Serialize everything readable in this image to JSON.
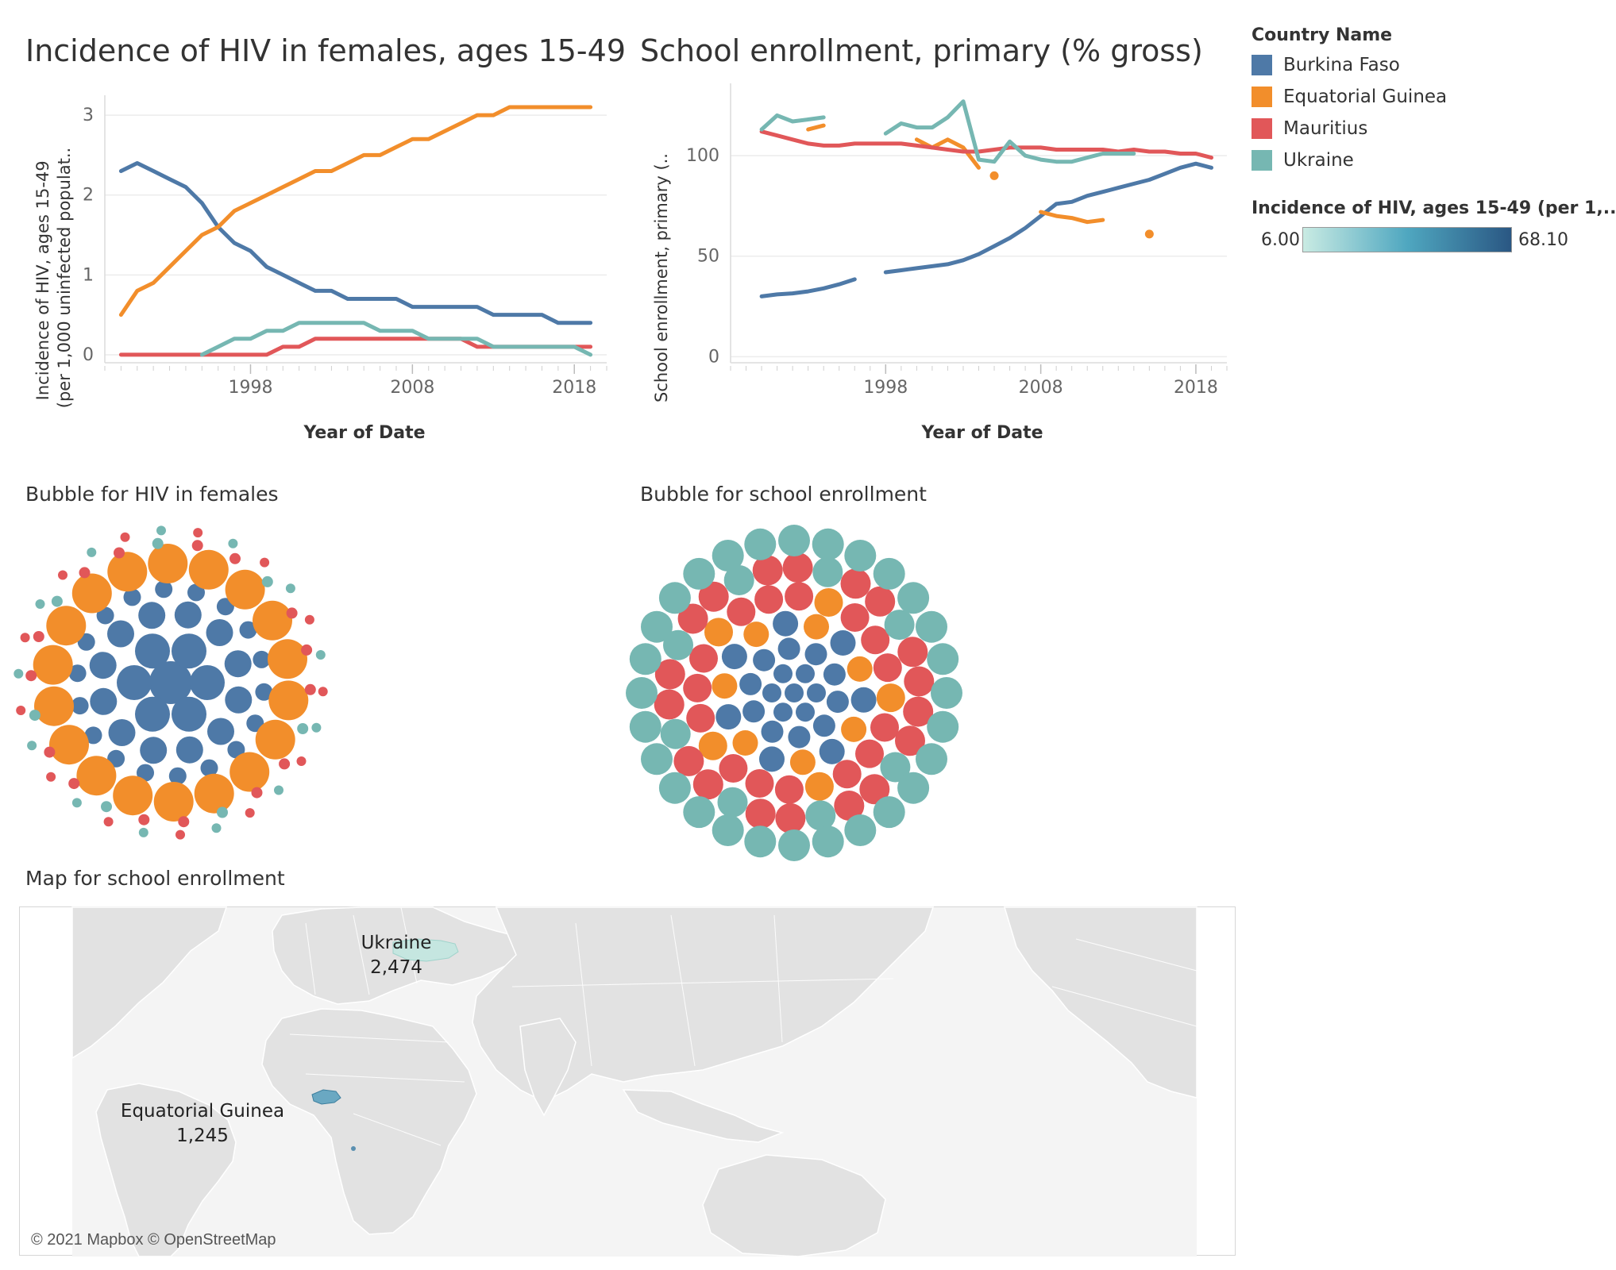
{
  "charts": {
    "hiv": {
      "title": "Incidence of HIV in females, ages 15-49",
      "ylabel_line1": "Incidence of HIV, ages 15-49",
      "ylabel_line2": "(per 1,000 uninfected populat..",
      "xlabel": "Year of Date"
    },
    "school": {
      "title": "School enrollment, primary (% gross)",
      "ylabel": "School enrollment, primary (..",
      "xlabel": "Year of Date"
    }
  },
  "legend": {
    "title": "Country Name",
    "items": [
      {
        "label": "Burkina Faso",
        "color": "#4e79a7"
      },
      {
        "label": "Equatorial Guinea",
        "color": "#f28e2b"
      },
      {
        "label": "Mauritius",
        "color": "#e15759"
      },
      {
        "label": "Ukraine",
        "color": "#76b7b2"
      }
    ],
    "ramp": {
      "title": "Incidence of HIV, ages 15-49 (per 1,..",
      "min_label": "6.00",
      "max_label": "68.10",
      "min_color": "#c9ebe3",
      "max_color": "#2a5783"
    }
  },
  "bubble": {
    "hiv_title": "Bubble for HIV in females",
    "school_title": "Bubble for school enrollment"
  },
  "map": {
    "title": "Map for school enrollment",
    "labels": [
      {
        "name": "Ukraine",
        "value": "2,474"
      },
      {
        "name": "Equatorial Guinea",
        "value": "1,245"
      }
    ],
    "copyright": "© 2021 Mapbox © OpenStreetMap"
  },
  "chart_data": [
    {
      "type": "line",
      "title": "Incidence of HIV in females, ages 15-49",
      "xlabel": "Year of Date",
      "ylabel": "Incidence of HIV, ages 15-49 (per 1,000 uninfected populat..",
      "x_ticks": [
        1998,
        2008,
        2018
      ],
      "y_ticks": [
        0,
        1,
        2,
        3
      ],
      "xlim": [
        1989,
        2020
      ],
      "ylim": [
        -0.1,
        3.15
      ],
      "grid": true,
      "series": [
        {
          "name": "Burkina Faso",
          "color": "#4e79a7",
          "x": [
            1990,
            1991,
            1992,
            1993,
            1994,
            1995,
            1996,
            1997,
            1998,
            1999,
            2000,
            2001,
            2002,
            2003,
            2004,
            2005,
            2006,
            2007,
            2008,
            2009,
            2010,
            2011,
            2012,
            2013,
            2014,
            2015,
            2016,
            2017,
            2018,
            2019
          ],
          "y": [
            2.3,
            2.4,
            2.3,
            2.2,
            2.1,
            1.9,
            1.6,
            1.4,
            1.3,
            1.1,
            1.0,
            0.9,
            0.8,
            0.8,
            0.7,
            0.7,
            0.7,
            0.7,
            0.6,
            0.6,
            0.6,
            0.6,
            0.6,
            0.5,
            0.5,
            0.5,
            0.5,
            0.4,
            0.4,
            0.4
          ]
        },
        {
          "name": "Equatorial Guinea",
          "color": "#f28e2b",
          "x": [
            1990,
            1991,
            1992,
            1993,
            1994,
            1995,
            1996,
            1997,
            1998,
            1999,
            2000,
            2001,
            2002,
            2003,
            2004,
            2005,
            2006,
            2007,
            2008,
            2009,
            2010,
            2011,
            2012,
            2013,
            2014,
            2015,
            2016,
            2017,
            2018,
            2019
          ],
          "y": [
            0.5,
            0.8,
            0.9,
            1.1,
            1.3,
            1.5,
            1.6,
            1.8,
            1.9,
            2.0,
            2.1,
            2.2,
            2.3,
            2.3,
            2.4,
            2.5,
            2.5,
            2.6,
            2.7,
            2.7,
            2.8,
            2.9,
            3.0,
            3.0,
            3.1,
            3.1,
            3.1,
            3.1,
            3.1,
            3.1
          ]
        },
        {
          "name": "Mauritius",
          "color": "#e15759",
          "x": [
            1990,
            1991,
            1992,
            1993,
            1994,
            1995,
            1996,
            1997,
            1998,
            1999,
            2000,
            2001,
            2002,
            2003,
            2004,
            2005,
            2006,
            2007,
            2008,
            2009,
            2010,
            2011,
            2012,
            2013,
            2014,
            2015,
            2016,
            2017,
            2018,
            2019
          ],
          "y": [
            0.0,
            0.0,
            0.0,
            0.0,
            0.0,
            0.0,
            0.0,
            0.0,
            0.0,
            0.0,
            0.1,
            0.1,
            0.2,
            0.2,
            0.2,
            0.2,
            0.2,
            0.2,
            0.2,
            0.2,
            0.2,
            0.2,
            0.1,
            0.1,
            0.1,
            0.1,
            0.1,
            0.1,
            0.1,
            0.1
          ]
        },
        {
          "name": "Ukraine",
          "color": "#76b7b2",
          "x": [
            1995,
            1996,
            1997,
            1998,
            1999,
            2000,
            2001,
            2002,
            2003,
            2004,
            2005,
            2006,
            2007,
            2008,
            2009,
            2010,
            2011,
            2012,
            2013,
            2014,
            2015,
            2016,
            2017,
            2018,
            2019
          ],
          "y": [
            0.0,
            0.1,
            0.2,
            0.2,
            0.3,
            0.3,
            0.4,
            0.4,
            0.4,
            0.4,
            0.4,
            0.3,
            0.3,
            0.3,
            0.2,
            0.2,
            0.2,
            0.2,
            0.1,
            0.1,
            0.1,
            0.1,
            0.1,
            0.1,
            0.0
          ]
        }
      ]
    },
    {
      "type": "line",
      "title": "School enrollment, primary (% gross)",
      "xlabel": "Year of Date",
      "ylabel": "School enrollment, primary (..",
      "x_ticks": [
        1998,
        2008,
        2018
      ],
      "y_ticks": [
        0,
        50,
        100
      ],
      "xlim": [
        1988,
        2020
      ],
      "ylim": [
        -3,
        132
      ],
      "grid": true,
      "series": [
        {
          "name": "Burkina Faso",
          "color": "#4e79a7",
          "segments": [
            {
              "x": [
                1990,
                1991,
                1992,
                1993,
                1994,
                1995,
                1996
              ],
              "y": [
                30,
                31,
                31.5,
                32.5,
                34,
                36,
                38.5
              ]
            },
            {
              "x": [
                1998,
                1999,
                2000,
                2001,
                2002,
                2003,
                2004,
                2005,
                2006,
                2007,
                2008,
                2009,
                2010,
                2011,
                2012,
                2013,
                2014,
                2015,
                2016,
                2017,
                2018,
                2019
              ],
              "y": [
                42,
                43,
                44,
                45,
                46,
                48,
                51,
                55,
                59,
                64,
                70,
                76,
                77,
                80,
                82,
                84,
                86,
                88,
                91,
                94,
                96,
                94
              ]
            }
          ]
        },
        {
          "name": "Equatorial Guinea",
          "color": "#f28e2b",
          "segments": [
            {
              "x": [
                1993,
                1994
              ],
              "y": [
                113,
                115
              ]
            },
            {
              "x": [
                2000,
                2001,
                2002,
                2003,
                2004
              ],
              "y": [
                108,
                104,
                108,
                104,
                94
              ]
            },
            {
              "x": [
                2008,
                2009,
                2010,
                2011,
                2012
              ],
              "y": [
                72,
                70,
                69,
                67,
                68
              ]
            }
          ],
          "points": [
            {
              "x": 2005,
              "y": 90
            },
            {
              "x": 2015,
              "y": 61
            }
          ]
        },
        {
          "name": "Mauritius",
          "color": "#e15759",
          "segments": [
            {
              "x": [
                1990,
                1991,
                1992,
                1993,
                1994,
                1995,
                1996,
                1997,
                1998,
                1999,
                2000,
                2001,
                2002,
                2003,
                2004,
                2005,
                2006,
                2007,
                2008,
                2009,
                2010,
                2011,
                2012,
                2013,
                2014,
                2015,
                2016,
                2017,
                2018,
                2019
              ],
              "y": [
                112,
                110,
                108,
                106,
                105,
                105,
                106,
                106,
                106,
                106,
                105,
                104,
                103,
                102,
                102,
                103,
                104,
                104,
                104,
                103,
                103,
                103,
                103,
                102,
                103,
                102,
                102,
                101,
                101,
                99
              ]
            }
          ]
        },
        {
          "name": "Ukraine",
          "color": "#76b7b2",
          "segments": [
            {
              "x": [
                1990,
                1991,
                1992,
                1993,
                1994
              ],
              "y": [
                113,
                120,
                117,
                118,
                119
              ]
            },
            {
              "x": [
                1998,
                1999,
                2000,
                2001,
                2002,
                2003,
                2004,
                2005,
                2006,
                2007,
                2008,
                2009,
                2010,
                2011,
                2012,
                2013,
                2014
              ],
              "y": [
                111,
                116,
                114,
                114,
                119,
                127,
                98,
                97,
                107,
                100,
                98,
                97,
                97,
                99,
                101,
                101,
                101
              ]
            }
          ]
        }
      ]
    }
  ]
}
